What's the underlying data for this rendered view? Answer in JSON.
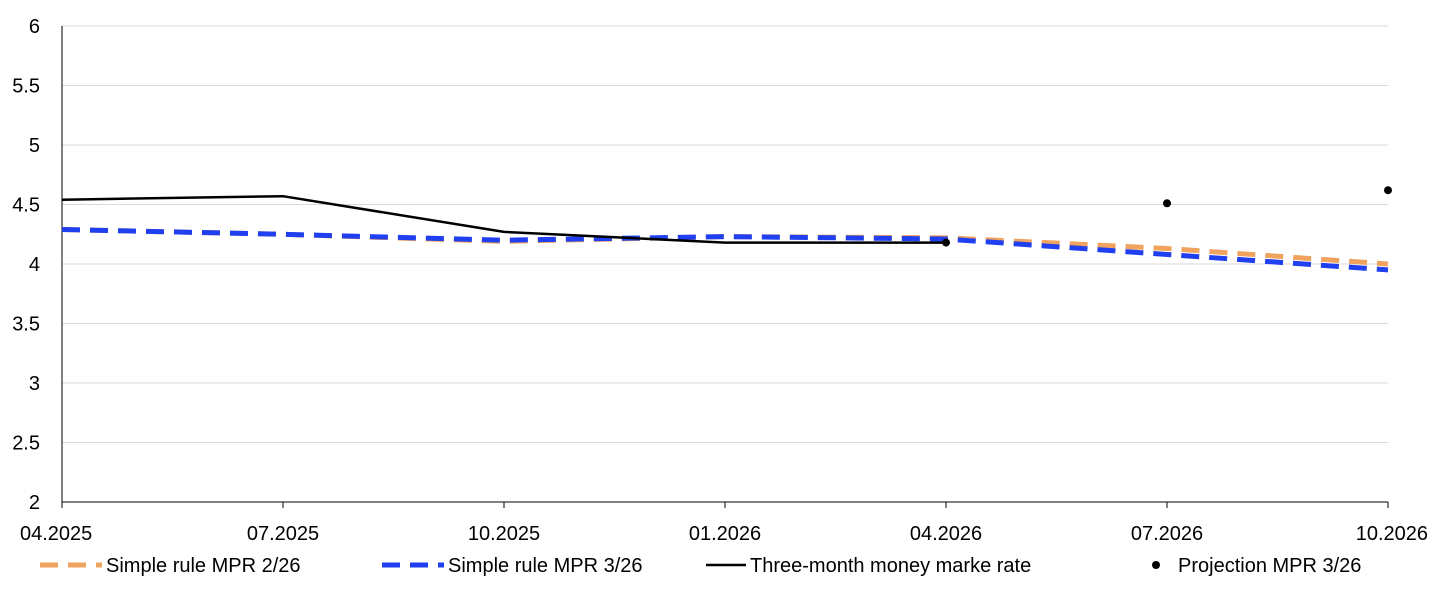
{
  "chart_data": {
    "type": "line",
    "title": "",
    "xlabel": "",
    "ylabel": "",
    "categories": [
      "04.2025",
      "07.2025",
      "10.2025",
      "01.2026",
      "04.2026",
      "07.2026",
      "10.2026"
    ],
    "ylim": [
      2,
      6
    ],
    "yticks": [
      "2",
      "2.5",
      "3",
      "3.5",
      "4",
      "4.5",
      "5",
      "5.5",
      "6"
    ],
    "grid": true,
    "legend_position": "bottom",
    "series": [
      {
        "name": "Simple rule MPR 2/26",
        "style": "dashed",
        "color": "#f0a35e",
        "values": [
          4.29,
          4.25,
          4.19,
          4.23,
          4.22,
          4.13,
          4.0
        ]
      },
      {
        "name": "Simple rule MPR 3/26",
        "style": "dashed",
        "color": "#1f3ff0",
        "values": [
          4.29,
          4.25,
          4.2,
          4.23,
          4.21,
          4.08,
          3.95
        ]
      },
      {
        "name": "Three-month money marke rate",
        "style": "solid",
        "color": "#000000",
        "values": [
          4.54,
          4.57,
          4.27,
          4.18,
          4.18,
          null,
          null
        ]
      },
      {
        "name": "Projection MPR 3/26",
        "style": "markers",
        "color": "#000000",
        "values": [
          null,
          null,
          null,
          null,
          4.18,
          4.51,
          4.62
        ]
      }
    ]
  }
}
